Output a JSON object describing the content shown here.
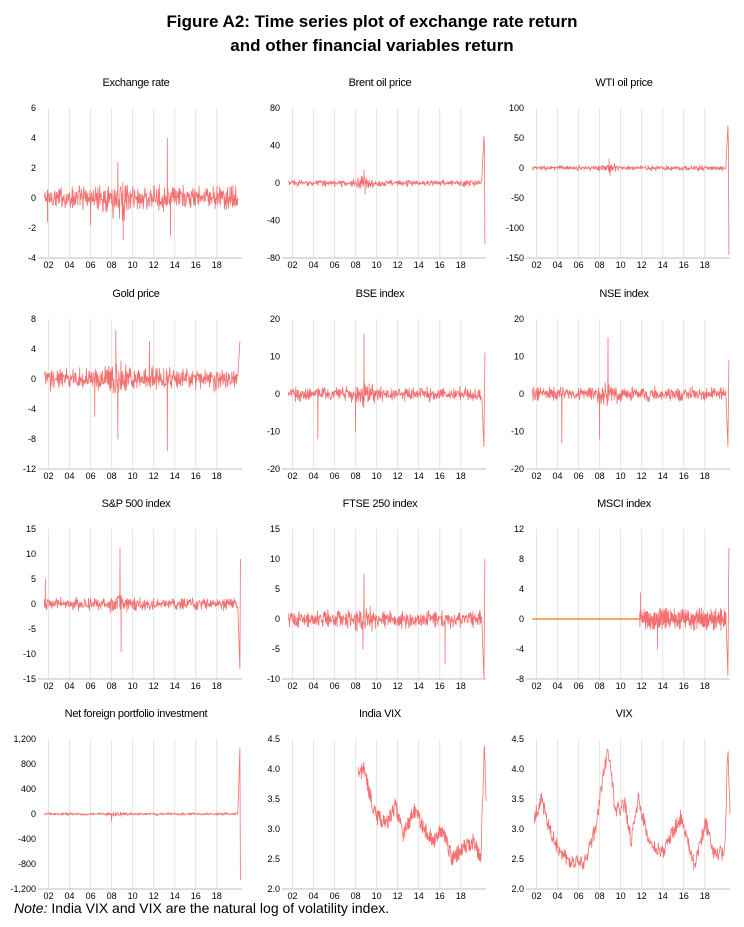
{
  "figure": {
    "title_line1": "Figure A2: Time series plot of exchange rate return",
    "title_line2": "and other financial variables return",
    "note_label": "Note:",
    "note_text": " India VIX and VIX are the natural log of volatility index.",
    "line_color": "#f47070",
    "flat_color": "#f08a3c",
    "grid_color": "#e4e4e4"
  },
  "chart_data": [
    {
      "type": "line",
      "title": "Exchange rate",
      "ylim": [
        -4,
        6
      ],
      "yticks": [
        "6",
        "4",
        "2",
        "0",
        "-2",
        "-4"
      ],
      "xticks": [
        "02",
        "04",
        "06",
        "08",
        "10",
        "12",
        "14",
        "16",
        "18"
      ],
      "series": {
        "kind": "returns",
        "base": 0,
        "amp": 0.7,
        "spikes": [
          [
            2008.6,
            2.4
          ],
          [
            2009.1,
            -2.8
          ],
          [
            2013.3,
            4
          ],
          [
            2013.6,
            -2.5
          ],
          [
            2006.0,
            -1.8
          ],
          [
            2001.9,
            -1.6
          ]
        ]
      }
    },
    {
      "type": "line",
      "title": "Brent oil price",
      "ylim": [
        -80,
        80
      ],
      "yticks": [
        "80",
        "40",
        "0",
        "-40",
        "-80"
      ],
      "xticks": [
        "02",
        "04",
        "06",
        "08",
        "10",
        "12",
        "14",
        "16",
        "18"
      ],
      "series": {
        "kind": "returns",
        "base": 0,
        "amp": 3,
        "spikes": [
          [
            2008.8,
            14
          ],
          [
            2008.9,
            -12
          ],
          [
            2020.2,
            50
          ],
          [
            2020.3,
            -65
          ],
          [
            2020.25,
            40
          ]
        ]
      }
    },
    {
      "type": "line",
      "title": "WTI oil price",
      "ylim": [
        -150,
        100
      ],
      "yticks": [
        "100",
        "50",
        "0",
        "-50",
        "-100",
        "-150"
      ],
      "xticks": [
        "02",
        "04",
        "06",
        "08",
        "10",
        "12",
        "14",
        "16",
        "18"
      ],
      "series": {
        "kind": "returns",
        "base": 0,
        "amp": 3.5,
        "spikes": [
          [
            2008.9,
            15
          ],
          [
            2009.0,
            -13
          ],
          [
            2020.2,
            70
          ],
          [
            2020.3,
            -145
          ],
          [
            2020.25,
            40
          ]
        ]
      }
    },
    {
      "type": "line",
      "title": "Gold price",
      "ylim": [
        -12,
        8
      ],
      "yticks": [
        "8",
        "4",
        "0",
        "-4",
        "-8",
        "-12"
      ],
      "xticks": [
        "02",
        "04",
        "06",
        "08",
        "10",
        "12",
        "14",
        "16",
        "18"
      ],
      "series": {
        "kind": "returns",
        "base": 0,
        "amp": 1.3,
        "spikes": [
          [
            2008.4,
            6.5
          ],
          [
            2008.6,
            -8
          ],
          [
            2013.3,
            -9.6
          ],
          [
            2011.6,
            5
          ],
          [
            2006.4,
            -5
          ],
          [
            2020.2,
            5
          ]
        ]
      }
    },
    {
      "type": "line",
      "title": "BSE index",
      "ylim": [
        -20,
        20
      ],
      "yticks": [
        "20",
        "10",
        "0",
        "-10",
        "-20"
      ],
      "xticks": [
        "02",
        "04",
        "06",
        "08",
        "10",
        "12",
        "14",
        "16",
        "18"
      ],
      "series": {
        "kind": "returns",
        "base": 0,
        "amp": 1.6,
        "spikes": [
          [
            2008.8,
            16
          ],
          [
            2004.4,
            -12
          ],
          [
            2008.0,
            -10
          ],
          [
            2020.2,
            -14
          ],
          [
            2020.3,
            11
          ]
        ]
      }
    },
    {
      "type": "line",
      "title": "NSE index",
      "ylim": [
        -20,
        20
      ],
      "yticks": [
        "20",
        "10",
        "0",
        "-10",
        "-20"
      ],
      "xticks": [
        "02",
        "04",
        "06",
        "08",
        "10",
        "12",
        "14",
        "16",
        "18"
      ],
      "series": {
        "kind": "returns",
        "base": 0,
        "amp": 1.6,
        "spikes": [
          [
            2008.8,
            15
          ],
          [
            2004.4,
            -13
          ],
          [
            2008.0,
            -12
          ],
          [
            2020.2,
            -14
          ],
          [
            2020.3,
            9
          ]
        ]
      }
    },
    {
      "type": "line",
      "title": "S&P 500 index",
      "ylim": [
        -15,
        15
      ],
      "yticks": [
        "15",
        "10",
        "5",
        "0",
        "-5",
        "-10",
        "-15"
      ],
      "xticks": [
        "02",
        "04",
        "06",
        "08",
        "10",
        "12",
        "14",
        "16",
        "18"
      ],
      "series": {
        "kind": "returns",
        "base": 0,
        "amp": 1.1,
        "spikes": [
          [
            2008.8,
            11
          ],
          [
            2008.9,
            -9.5
          ],
          [
            2020.2,
            -13
          ],
          [
            2020.25,
            9
          ],
          [
            2001.7,
            5
          ]
        ]
      }
    },
    {
      "type": "line",
      "title": "FTSE 250 index",
      "ylim": [
        -10,
        15
      ],
      "yticks": [
        "15",
        "10",
        "5",
        "0",
        "-5",
        "-10"
      ],
      "xticks": [
        "02",
        "04",
        "06",
        "08",
        "10",
        "12",
        "14",
        "16",
        "18"
      ],
      "series": {
        "kind": "returns",
        "base": 0,
        "amp": 1.2,
        "spikes": [
          [
            2008.8,
            7.5
          ],
          [
            2008.7,
            -5
          ],
          [
            2016.5,
            -7.5
          ],
          [
            2020.2,
            -10
          ],
          [
            2020.3,
            10
          ]
        ]
      }
    },
    {
      "type": "line",
      "title": "MSCI index",
      "ylim": [
        -8,
        12
      ],
      "yticks": [
        "12",
        "8",
        "4",
        "0",
        "-4",
        "-8"
      ],
      "xticks": [
        "02",
        "04",
        "06",
        "08",
        "10",
        "12",
        "14",
        "16",
        "18"
      ],
      "series": {
        "kind": "returns_flatstart",
        "base": 0,
        "amp": 1.2,
        "start": 2011.8,
        "spikes": [
          [
            2020.2,
            -7.5
          ],
          [
            2020.3,
            9.5
          ],
          [
            2011.9,
            3.5
          ],
          [
            2013.5,
            -4
          ]
        ]
      }
    },
    {
      "type": "line",
      "title": "Net foreign portfolio investment",
      "ylim": [
        -1200,
        1200
      ],
      "yticks": [
        "1,200",
        "800",
        "400",
        "0",
        "-400",
        "-800",
        "-1,200"
      ],
      "xticks": [
        "02",
        "04",
        "06",
        "08",
        "10",
        "12",
        "14",
        "16",
        "18"
      ],
      "series": {
        "kind": "returns",
        "base": 0,
        "amp": 18,
        "spikes": [
          [
            2008.0,
            -120
          ],
          [
            2020.2,
            1050
          ],
          [
            2020.25,
            -1050
          ]
        ]
      }
    },
    {
      "type": "line",
      "title": "India VIX",
      "ylim": [
        2.0,
        4.5
      ],
      "yticks": [
        "4.5",
        "4.0",
        "3.5",
        "3.0",
        "2.5",
        "2.0"
      ],
      "xticks": [
        "02",
        "04",
        "06",
        "08",
        "10",
        "12",
        "14",
        "16",
        "18"
      ],
      "series": {
        "kind": "level",
        "start": 2008.2,
        "points": [
          [
            2008.2,
            3.9
          ],
          [
            2008.8,
            4.0
          ],
          [
            2009.3,
            3.6
          ],
          [
            2010,
            3.2
          ],
          [
            2011,
            3.1
          ],
          [
            2011.8,
            3.4
          ],
          [
            2012.5,
            2.9
          ],
          [
            2013.6,
            3.3
          ],
          [
            2014.5,
            3.0
          ],
          [
            2015.5,
            2.8
          ],
          [
            2016.2,
            3.0
          ],
          [
            2017.2,
            2.5
          ],
          [
            2018.3,
            2.7
          ],
          [
            2019.2,
            2.8
          ],
          [
            2019.9,
            2.5
          ],
          [
            2020.25,
            4.4
          ],
          [
            2020.4,
            3.5
          ]
        ]
      }
    },
    {
      "type": "line",
      "title": "VIX",
      "ylim": [
        2.0,
        4.5
      ],
      "yticks": [
        "4.5",
        "4.0",
        "3.5",
        "3.0",
        "2.5",
        "2.0"
      ],
      "xticks": [
        "02",
        "04",
        "06",
        "08",
        "10",
        "12",
        "14",
        "16",
        "18"
      ],
      "series": {
        "kind": "level",
        "start": 2001.8,
        "points": [
          [
            2001.8,
            3.2
          ],
          [
            2002.5,
            3.5
          ],
          [
            2003.2,
            3.0
          ],
          [
            2004,
            2.7
          ],
          [
            2005,
            2.5
          ],
          [
            2006.5,
            2.4
          ],
          [
            2007.6,
            3.0
          ],
          [
            2008.8,
            4.4
          ],
          [
            2009.5,
            3.3
          ],
          [
            2010.4,
            3.4
          ],
          [
            2011.0,
            2.8
          ],
          [
            2011.7,
            3.5
          ],
          [
            2012.7,
            2.8
          ],
          [
            2014,
            2.6
          ],
          [
            2015.7,
            3.2
          ],
          [
            2017,
            2.4
          ],
          [
            2018.1,
            3.1
          ],
          [
            2018.8,
            2.6
          ],
          [
            2019.9,
            2.6
          ],
          [
            2020.2,
            4.4
          ],
          [
            2020.4,
            3.3
          ]
        ]
      }
    }
  ]
}
